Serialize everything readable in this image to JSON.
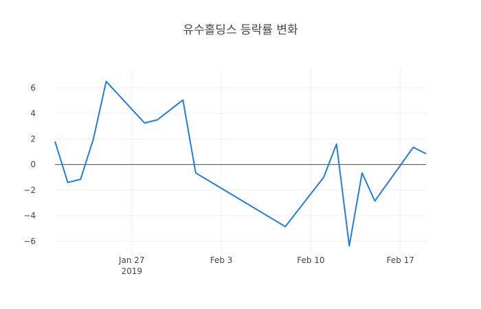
{
  "chart_data": {
    "type": "line",
    "title": "유수홀딩스 등락률 변화",
    "xlabel": "",
    "ylabel": "",
    "x_range": [
      "2019-01-21",
      "2019-02-19"
    ],
    "ylim": [
      -7,
      7.5
    ],
    "y_ticks": [
      6,
      4,
      2,
      0,
      -2,
      -4,
      -6
    ],
    "x_ticks": [
      {
        "date": "2019-01-27",
        "label": "Jan 27",
        "sublabel": "2019"
      },
      {
        "date": "2019-02-03",
        "label": "Feb 3",
        "sublabel": ""
      },
      {
        "date": "2019-02-10",
        "label": "Feb 10",
        "sublabel": ""
      },
      {
        "date": "2019-02-17",
        "label": "Feb 17",
        "sublabel": ""
      }
    ],
    "grid": true,
    "zeroline": true,
    "series": [
      {
        "color": "#1f7ddf",
        "points": [
          {
            "x": "2019-01-21",
            "y": 1.8
          },
          {
            "x": "2019-01-22",
            "y": -1.4
          },
          {
            "x": "2019-01-23",
            "y": -1.15
          },
          {
            "x": "2019-01-24",
            "y": 2.0
          },
          {
            "x": "2019-01-25",
            "y": 6.5
          },
          {
            "x": "2019-01-28",
            "y": 3.25
          },
          {
            "x": "2019-01-29",
            "y": 3.5
          },
          {
            "x": "2019-01-31",
            "y": 5.05
          },
          {
            "x": "2019-02-01",
            "y": -0.65
          },
          {
            "x": "2019-02-08",
            "y": -4.85
          },
          {
            "x": "2019-02-11",
            "y": -1.0
          },
          {
            "x": "2019-02-12",
            "y": 1.6
          },
          {
            "x": "2019-02-13",
            "y": -6.35
          },
          {
            "x": "2019-02-14",
            "y": -0.65
          },
          {
            "x": "2019-02-15",
            "y": -2.85
          },
          {
            "x": "2019-02-18",
            "y": 1.35
          },
          {
            "x": "2019-02-19",
            "y": 0.85
          }
        ]
      }
    ]
  }
}
